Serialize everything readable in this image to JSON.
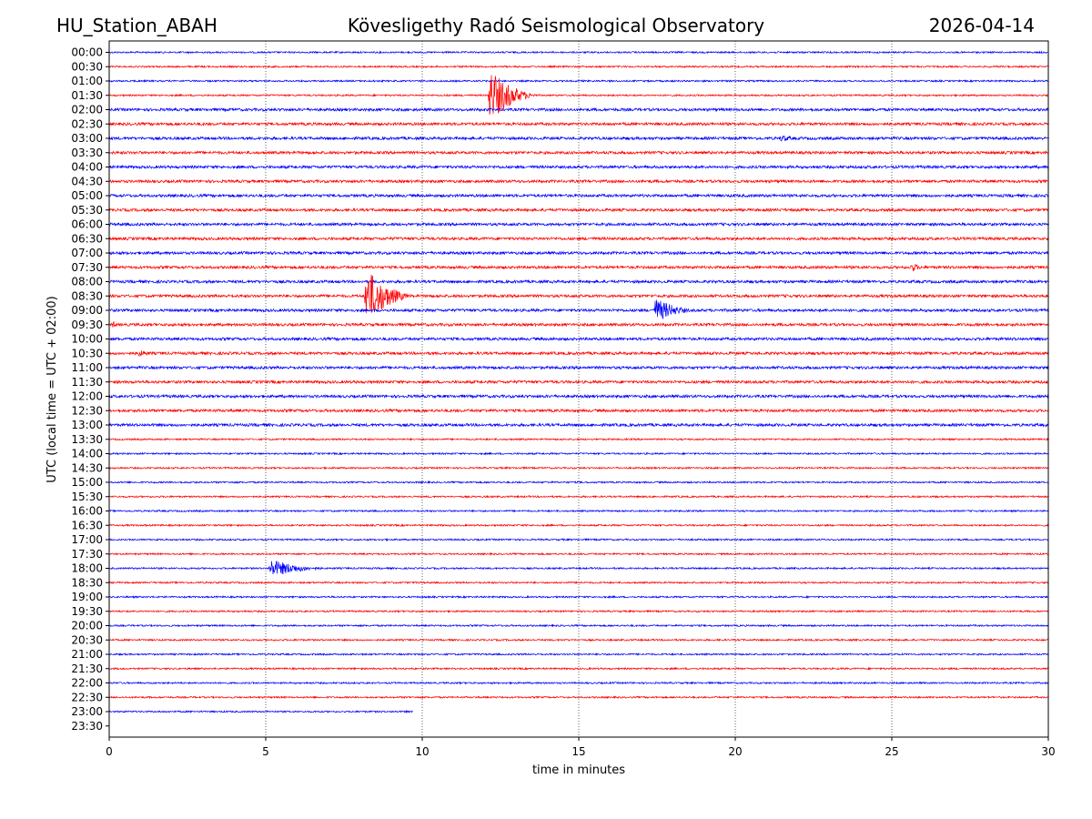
{
  "header": {
    "station": "HU_Station_ABAH",
    "title": "Kövesligethy Radó Seismological Observatory",
    "date": "2026-04-14"
  },
  "chart_data": {
    "type": "line",
    "title": "Kövesligethy Radó Seismological Observatory",
    "xlabel": "time in minutes",
    "ylabel": "UTC (local time = UTC + 02:00)",
    "xlim": [
      0,
      30
    ],
    "xticks": [
      0,
      5,
      10,
      15,
      20,
      25,
      30
    ],
    "grid_x": true,
    "colors": [
      "#0000ff",
      "#ff0000"
    ],
    "rows": [
      "00:00",
      "00:30",
      "01:00",
      "01:30",
      "02:00",
      "02:30",
      "03:00",
      "03:30",
      "04:00",
      "04:30",
      "05:00",
      "05:30",
      "06:00",
      "06:30",
      "07:00",
      "07:30",
      "08:00",
      "08:30",
      "09:00",
      "09:30",
      "10:00",
      "10:30",
      "11:00",
      "11:30",
      "12:00",
      "12:30",
      "13:00",
      "13:30",
      "14:00",
      "14:30",
      "15:00",
      "15:30",
      "16:00",
      "16:30",
      "17:00",
      "17:30",
      "18:00",
      "18:30",
      "19:00",
      "19:30",
      "20:00",
      "20:30",
      "21:00",
      "21:30",
      "22:00",
      "22:30",
      "23:00",
      "23:30"
    ],
    "recorded_until": {
      "row": "23:00",
      "minute": 9.7
    },
    "events": [
      {
        "row": "01:30",
        "minute": 12.1,
        "duration": 2.0,
        "amplitude": 30
      },
      {
        "row": "03:00",
        "minute": 21.4,
        "duration": 1.4,
        "amplitude": 4
      },
      {
        "row": "07:30",
        "minute": 25.6,
        "duration": 0.7,
        "amplitude": 6
      },
      {
        "row": "08:30",
        "minute": 8.15,
        "duration": 2.0,
        "amplitude": 32
      },
      {
        "row": "09:00",
        "minute": 17.4,
        "duration": 1.8,
        "amplitude": 14
      },
      {
        "row": "09:30",
        "minute": 0.1,
        "duration": 0.3,
        "amplitude": 5
      },
      {
        "row": "10:30",
        "minute": 0.9,
        "duration": 1.2,
        "amplitude": 4
      },
      {
        "row": "18:00",
        "minute": 5.1,
        "duration": 2.6,
        "amplitude": 10
      }
    ]
  }
}
